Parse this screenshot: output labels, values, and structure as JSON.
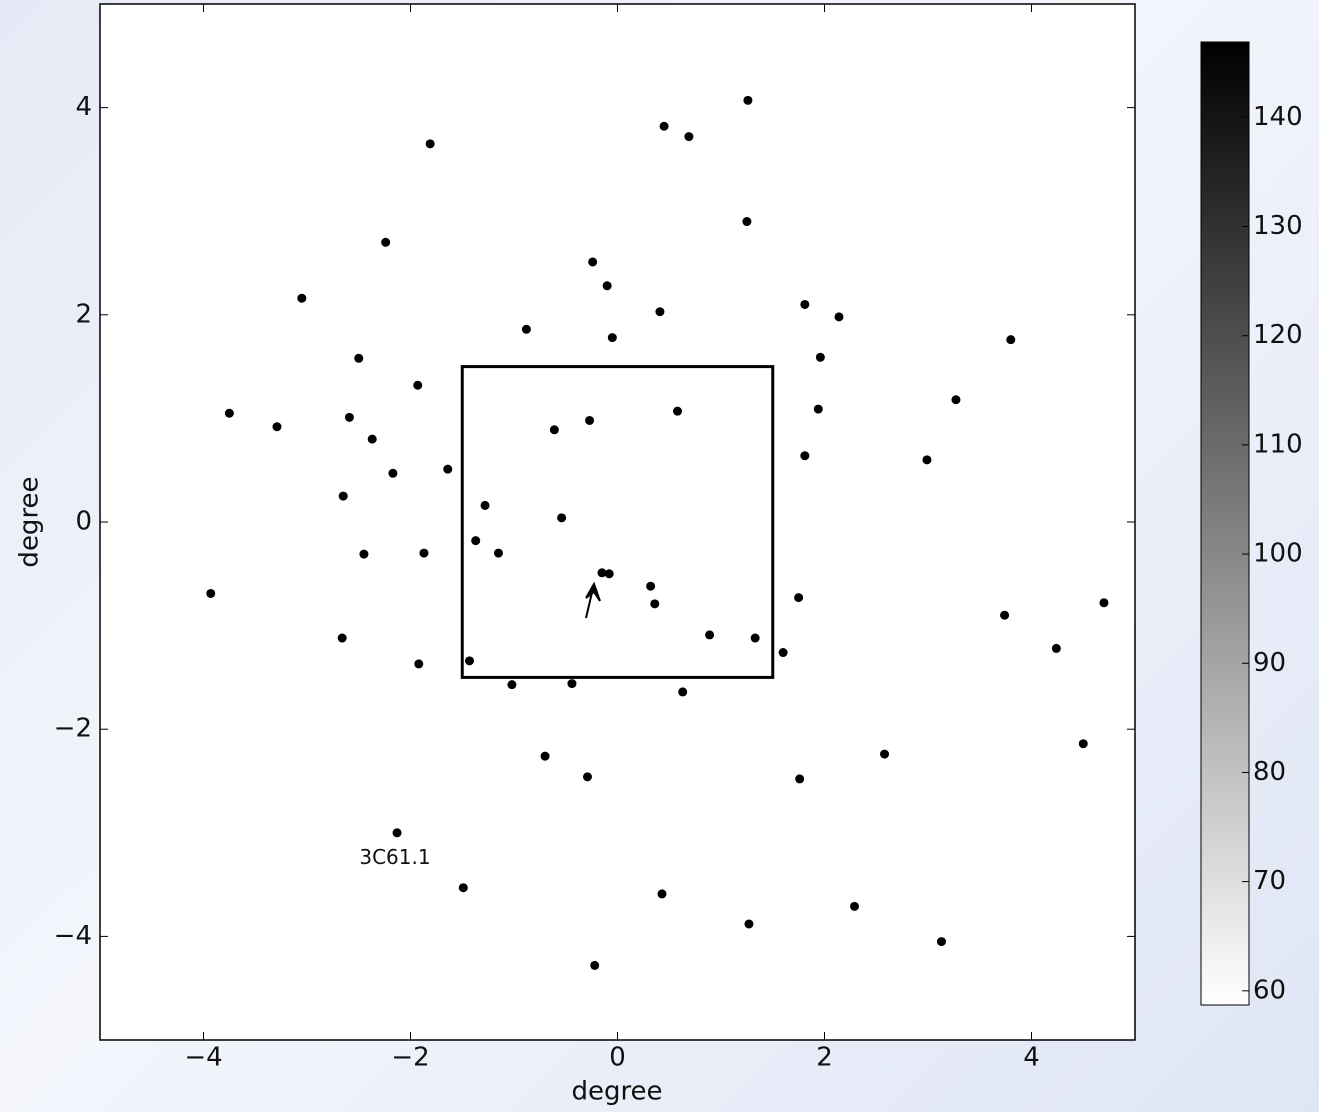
{
  "chart_data": {
    "type": "scatter",
    "xlabel": "degree",
    "ylabel": "degree",
    "xlim": [
      -5,
      5
    ],
    "ylim": [
      -5,
      5
    ],
    "xticks": [
      {
        "value": -4,
        "label": "−4"
      },
      {
        "value": -2,
        "label": "−2"
      },
      0,
      2,
      4
    ],
    "yticks": [
      {
        "value": -4,
        "label": "−4"
      },
      {
        "value": -2,
        "label": "−2"
      },
      0,
      2,
      4
    ],
    "color": "#000000",
    "x": [
      1.26,
      0.45,
      0.69,
      -1.81,
      1.25,
      -2.24,
      -0.24,
      -0.1,
      -3.05,
      1.81,
      2.14,
      -0.88,
      0.41,
      -0.05,
      3.8,
      1.96,
      -2.5,
      -1.93,
      3.27,
      1.94,
      -3.75,
      -2.59,
      -0.27,
      0.58,
      -0.61,
      -3.29,
      -2.37,
      2.99,
      1.81,
      -1.64,
      -2.17,
      -2.65,
      -1.28,
      -0.54,
      -1.37,
      -1.15,
      -2.45,
      -1.87,
      -0.15,
      -0.08,
      0.32,
      0.36,
      1.75,
      -3.93,
      3.74,
      4.7,
      0.89,
      -2.66,
      1.33,
      1.6,
      4.24,
      -1.43,
      -1.92,
      0.63,
      -1.02,
      -0.44,
      -0.7,
      2.58,
      4.5,
      -0.29,
      1.76,
      -2.13,
      1.27,
      3.13,
      -0.22,
      0.43,
      2.29,
      -1.49
    ],
    "y": [
      4.07,
      3.82,
      3.72,
      3.65,
      2.9,
      2.7,
      2.51,
      2.28,
      2.16,
      2.1,
      1.98,
      1.86,
      2.03,
      1.78,
      1.76,
      1.59,
      1.58,
      1.32,
      1.18,
      1.09,
      1.05,
      1.01,
      0.98,
      1.07,
      0.89,
      0.92,
      0.8,
      0.6,
      0.64,
      0.51,
      0.47,
      0.25,
      0.16,
      0.04,
      -0.18,
      -0.3,
      -0.31,
      -0.3,
      -0.49,
      -0.5,
      -0.62,
      -0.79,
      -0.73,
      -0.69,
      -0.9,
      -0.78,
      -1.09,
      -1.12,
      -1.12,
      -1.26,
      -1.22,
      -1.34,
      -1.37,
      -1.64,
      -1.57,
      -1.56,
      -2.26,
      -2.24,
      -2.14,
      -2.46,
      -2.48,
      -3.0,
      -3.88,
      -4.05,
      -4.28,
      -3.59,
      -3.71,
      -3.53
    ],
    "box": {
      "x": [
        -1.5,
        1.5
      ],
      "y": [
        -1.5,
        1.5
      ]
    },
    "annotation": {
      "text": "3C61.1",
      "x": -2.15,
      "y": -3.25
    },
    "colorbar": {
      "clim": [
        58.7,
        146.9
      ],
      "ticks": [
        60,
        70,
        80,
        90,
        100,
        110,
        120,
        130,
        140
      ],
      "colors": [
        "#ffffff",
        "#000000"
      ]
    }
  }
}
